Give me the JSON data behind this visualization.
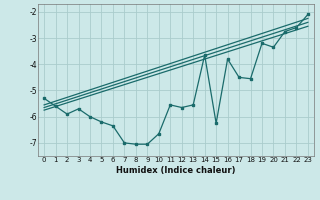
{
  "xlabel": "Humidex (Indice chaleur)",
  "bg_color": "#cce8e8",
  "grid_color": "#aacccc",
  "line_color": "#1a6b6b",
  "xlim": [
    -0.5,
    23.5
  ],
  "ylim": [
    -7.5,
    -1.7
  ],
  "yticks": [
    -7,
    -6,
    -5,
    -4,
    -3,
    -2
  ],
  "xticks": [
    0,
    1,
    2,
    3,
    4,
    5,
    6,
    7,
    8,
    9,
    10,
    11,
    12,
    13,
    14,
    15,
    16,
    17,
    18,
    19,
    20,
    21,
    22,
    23
  ],
  "jagged_x": [
    0,
    1,
    2,
    3,
    4,
    5,
    6,
    7,
    8,
    9,
    10,
    11,
    12,
    13,
    14,
    15,
    16,
    17,
    18,
    19,
    20,
    21,
    22,
    23
  ],
  "jagged_y": [
    -5.3,
    -5.6,
    -5.9,
    -5.7,
    -6.0,
    -6.2,
    -6.35,
    -7.0,
    -7.05,
    -7.05,
    -6.65,
    -5.55,
    -5.65,
    -5.55,
    -3.65,
    -6.25,
    -3.8,
    -4.5,
    -4.55,
    -3.2,
    -3.35,
    -2.75,
    -2.6,
    -2.1
  ],
  "line2_x": [
    0,
    23
  ],
  "line2_y": [
    -5.55,
    -2.25
  ],
  "line3_x": [
    0,
    23
  ],
  "line3_y": [
    -5.65,
    -2.4
  ],
  "line4_x": [
    0,
    23
  ],
  "line4_y": [
    -5.75,
    -2.55
  ]
}
